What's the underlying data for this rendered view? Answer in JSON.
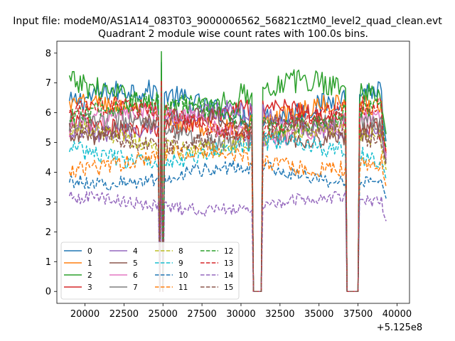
{
  "chart_data": {
    "type": "line",
    "suptitle": "Input file: modeM0/AS1A14_083T03_9000006562_56821cztM0_level2_quad_clean.evt",
    "title": "Quadrant 2 module wise count rates with 100.0s bins.",
    "xlabel": "",
    "ylabel": "",
    "x_offset_label": "+5.125e8",
    "xlim": [
      18200,
      40800
    ],
    "ylim": [
      -0.4,
      8.4
    ],
    "xticks": [
      20000,
      22500,
      25000,
      27500,
      30000,
      32500,
      35000,
      37500,
      40000
    ],
    "xtick_labels": [
      "20000",
      "22500",
      "25000",
      "27500",
      "30000",
      "32500",
      "35000",
      "37500",
      "40000"
    ],
    "yticks": [
      0,
      1,
      2,
      3,
      4,
      5,
      6,
      7,
      8
    ],
    "ytick_labels": [
      "0",
      "1",
      "2",
      "3",
      "4",
      "5",
      "6",
      "7",
      "8"
    ],
    "x_start": 19000,
    "x_end": 39300,
    "bin": 100,
    "gaps": [
      [
        24800,
        25000
      ],
      [
        30800,
        31300
      ],
      [
        36800,
        37500
      ]
    ],
    "gap_spikes": [
      24900,
      31250,
      37450
    ],
    "legend_location": "lower-left",
    "legend_ncol": 4,
    "series": [
      {
        "name": "0",
        "mean": 6.3,
        "noise": 0.35,
        "color": "#1f77b4",
        "dash": "solid"
      },
      {
        "name": "1",
        "mean": 5.9,
        "noise": 0.3,
        "color": "#ff7f0e",
        "dash": "solid"
      },
      {
        "name": "2",
        "mean": 6.6,
        "noise": 0.38,
        "color": "#2ca02c",
        "dash": "solid"
      },
      {
        "name": "3",
        "mean": 5.8,
        "noise": 0.3,
        "color": "#d62728",
        "dash": "solid"
      },
      {
        "name": "4",
        "mean": 5.7,
        "noise": 0.3,
        "color": "#9467bd",
        "dash": "solid"
      },
      {
        "name": "5",
        "mean": 5.5,
        "noise": 0.3,
        "color": "#8c564b",
        "dash": "solid"
      },
      {
        "name": "6",
        "mean": 5.6,
        "noise": 0.3,
        "color": "#e377c2",
        "dash": "solid"
      },
      {
        "name": "7",
        "mean": 5.4,
        "noise": 0.3,
        "color": "#7f7f7f",
        "dash": "solid"
      },
      {
        "name": "8",
        "mean": 5.1,
        "noise": 0.28,
        "color": "#bcbd22",
        "dash": "dashed"
      },
      {
        "name": "9",
        "mean": 4.7,
        "noise": 0.28,
        "color": "#17becf",
        "dash": "dashed"
      },
      {
        "name": "10",
        "mean": 3.9,
        "noise": 0.22,
        "color": "#1f77b4",
        "dash": "dashed"
      },
      {
        "name": "11",
        "mean": 4.4,
        "noise": 0.25,
        "color": "#ff7f0e",
        "dash": "dashed"
      },
      {
        "name": "12",
        "mean": 6.0,
        "noise": 0.3,
        "color": "#2ca02c",
        "dash": "dashed"
      },
      {
        "name": "13",
        "mean": 5.8,
        "noise": 0.3,
        "color": "#d62728",
        "dash": "dashed"
      },
      {
        "name": "14",
        "mean": 2.95,
        "noise": 0.2,
        "color": "#9467bd",
        "dash": "dashed"
      },
      {
        "name": "15",
        "mean": 5.3,
        "noise": 0.28,
        "color": "#8c564b",
        "dash": "dashed"
      }
    ]
  }
}
